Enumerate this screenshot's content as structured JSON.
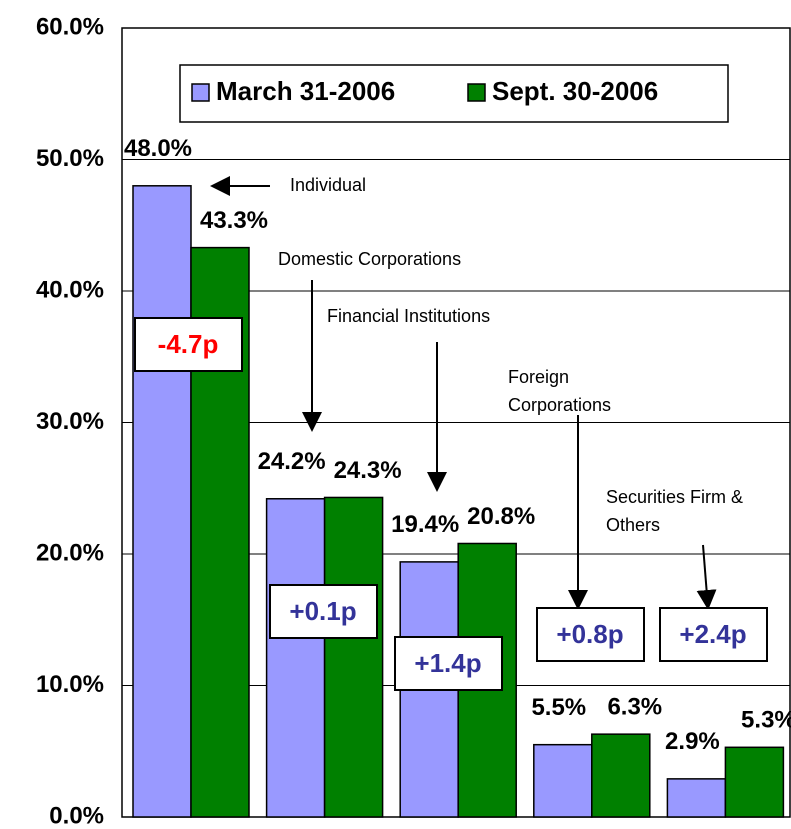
{
  "chart_data": {
    "type": "bar",
    "categories": [
      null,
      null,
      null,
      null,
      null
    ],
    "series": [
      {
        "name": "March 31-2006",
        "color": "#9999ff",
        "values": [
          48.0,
          24.2,
          19.4,
          5.5,
          2.9
        ],
        "value_labels": [
          "48.0%",
          "24.2%",
          "19.4%",
          "5.5%",
          "2.9%"
        ]
      },
      {
        "name": "Sept. 30-2006",
        "color": "#008000",
        "values": [
          43.3,
          24.3,
          20.8,
          6.3,
          5.3
        ],
        "value_labels": [
          "43.3%",
          "24.3%",
          "20.8%",
          "6.3%",
          "5.3%"
        ]
      }
    ],
    "ylim": [
      0,
      60
    ],
    "yticks": [
      {
        "value": 0,
        "label": "0.0%"
      },
      {
        "value": 10,
        "label": "10.0%"
      },
      {
        "value": 20,
        "label": "20.0%"
      },
      {
        "value": 30,
        "label": "30.0%"
      },
      {
        "value": 40,
        "label": "40.0%"
      },
      {
        "value": 50,
        "label": "50.0%"
      },
      {
        "value": 60,
        "label": "60.0%"
      }
    ],
    "grid": true,
    "legend": "top",
    "annotations": [
      {
        "lines": [
          "Individual"
        ]
      },
      {
        "lines": [
          "Domestic Corporations"
        ]
      },
      {
        "lines": [
          "Financial Institutions"
        ]
      },
      {
        "lines": [
          "Foreign",
          "Corporations"
        ]
      },
      {
        "lines": [
          "Securities Firm &",
          "Others"
        ]
      }
    ],
    "changes": [
      {
        "label": "-4.7p",
        "color": "#ff0000"
      },
      {
        "label": "+0.1p",
        "color": "#333399"
      },
      {
        "label": "+1.4p",
        "color": "#333399"
      },
      {
        "label": "+0.8p",
        "color": "#333399"
      },
      {
        "label": "+2.4p",
        "color": "#333399"
      }
    ]
  }
}
